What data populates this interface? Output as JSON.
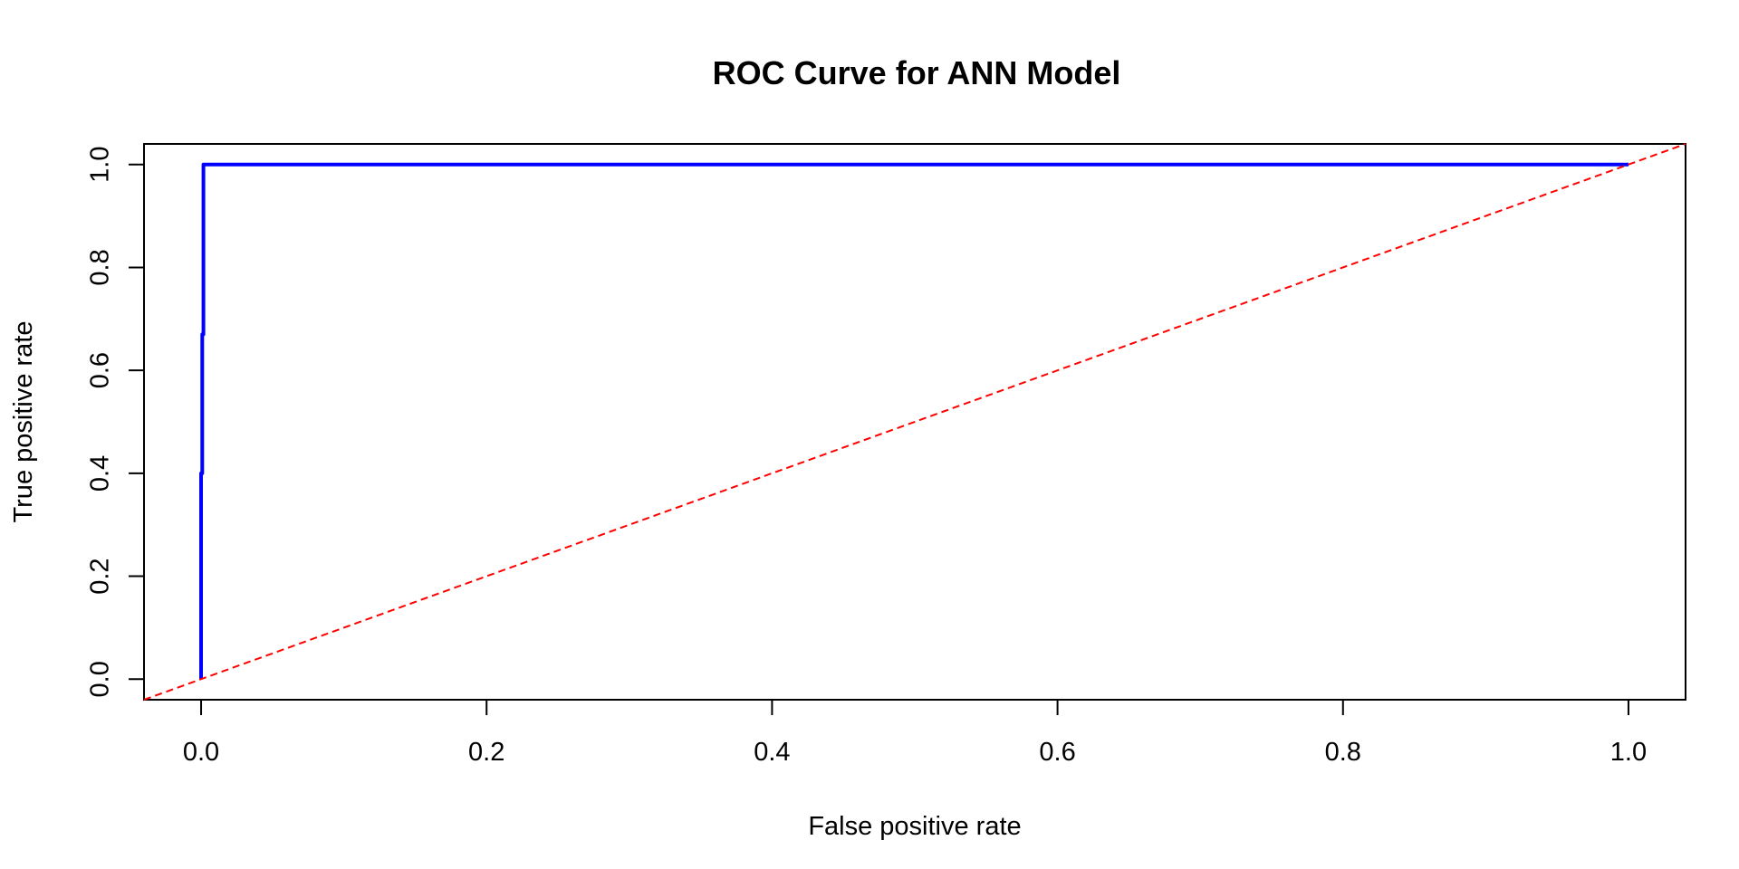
{
  "chart_data": {
    "type": "line",
    "title": "ROC Curve for ANN Model",
    "xlabel": "False positive rate",
    "ylabel": "True positive rate",
    "xlim": [
      -0.04,
      1.04
    ],
    "ylim": [
      -0.04,
      1.04
    ],
    "x_ticks": [
      0.0,
      0.2,
      0.4,
      0.6,
      0.8,
      1.0
    ],
    "y_ticks": [
      0.0,
      0.2,
      0.4,
      0.6,
      0.8,
      1.0
    ],
    "x_tick_labels": [
      "0.0",
      "0.2",
      "0.4",
      "0.6",
      "0.8",
      "1.0"
    ],
    "y_tick_labels": [
      "0.0",
      "0.2",
      "0.4",
      "0.6",
      "0.8",
      "1.0"
    ],
    "grid": false,
    "series": [
      {
        "color": "#0000ff",
        "style": "solid",
        "x": [
          0.0,
          0.0,
          0.0008,
          0.0008,
          0.0016,
          0.0016,
          1.0
        ],
        "y": [
          0.0,
          0.4,
          0.4,
          0.67,
          0.67,
          1.0,
          1.0
        ]
      },
      {
        "color": "#ff0000",
        "style": "dashed",
        "x": [
          -0.04,
          1.04
        ],
        "y": [
          -0.04,
          1.04
        ]
      }
    ]
  }
}
